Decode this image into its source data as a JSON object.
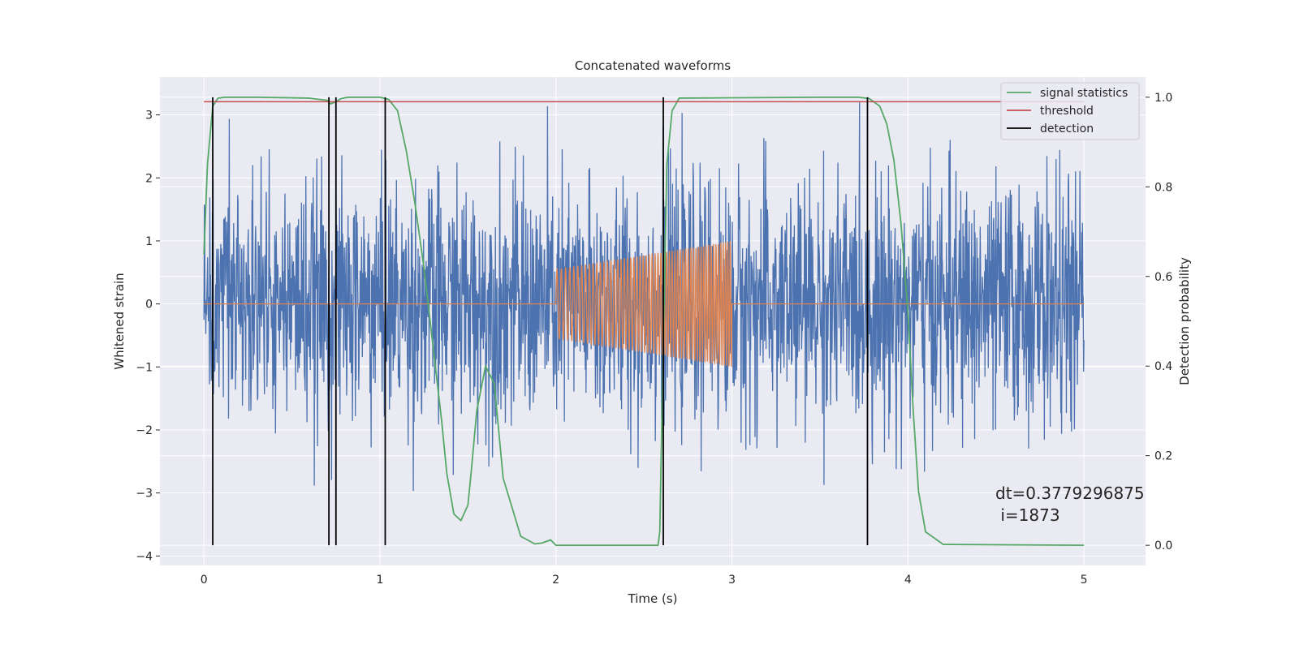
{
  "chart_data": {
    "type": "line",
    "title": "Concatenated waveforms",
    "xlabel": "Time (s)",
    "ylabel": "Whitened strain",
    "y2label": "Detection probability",
    "xlim": [
      -0.25,
      5.35
    ],
    "ylim": [
      -4.15,
      3.6
    ],
    "y2lim": [
      -0.045,
      1.045
    ],
    "xticks": [
      "0",
      "1",
      "2",
      "3",
      "4",
      "5"
    ],
    "xtick_values": [
      0,
      1,
      2,
      3,
      4,
      5
    ],
    "yticks": [
      "−4",
      "−3",
      "−2",
      "−1",
      "0",
      "1",
      "2",
      "3"
    ],
    "ytick_values": [
      -4,
      -3,
      -2,
      -1,
      0,
      1,
      2,
      3
    ],
    "y2ticks": [
      "0.0",
      "0.2",
      "0.4",
      "0.6",
      "0.8",
      "1.0"
    ],
    "y2tick_values": [
      0,
      0.2,
      0.4,
      0.6,
      0.8,
      1.0
    ],
    "grid": true,
    "legend_position": "top-right",
    "series": [
      {
        "name": "",
        "kind": "noise",
        "color": "#4c72b0",
        "x_range": [
          0,
          5
        ],
        "approx_std": 1.0,
        "approx_min": -3.9,
        "approx_max": 3.2
      },
      {
        "name": "",
        "kind": "chirp",
        "color": "#dd8452",
        "x_range": [
          2.0,
          3.0
        ],
        "amplitude_start": 0.55,
        "amplitude_end": 1.0,
        "baseline": 0
      },
      {
        "name": "signal statistics",
        "axis": "right",
        "color": "#55a868",
        "x": [
          0.0,
          0.02,
          0.05,
          0.08,
          0.12,
          0.3,
          0.6,
          0.7,
          0.72,
          0.75,
          0.78,
          0.82,
          1.0,
          1.05,
          1.1,
          1.15,
          1.2,
          1.25,
          1.3,
          1.35,
          1.38,
          1.42,
          1.46,
          1.5,
          1.52,
          1.55,
          1.6,
          1.65,
          1.7,
          1.8,
          1.88,
          1.92,
          1.97,
          2.0,
          2.3,
          2.55,
          2.58,
          2.59,
          2.61,
          2.63,
          2.66,
          2.7,
          3.5,
          3.72,
          3.78,
          3.84,
          3.88,
          3.92,
          3.96,
          4.0,
          4.03,
          4.06,
          4.1,
          4.2,
          5.0
        ],
        "values": [
          0.65,
          0.85,
          0.98,
          0.998,
          1.0,
          1.0,
          0.998,
          0.993,
          0.985,
          0.99,
          0.997,
          1.0,
          1.0,
          0.995,
          0.97,
          0.88,
          0.76,
          0.62,
          0.45,
          0.28,
          0.16,
          0.07,
          0.055,
          0.09,
          0.17,
          0.3,
          0.4,
          0.36,
          0.15,
          0.02,
          0.003,
          0.005,
          0.012,
          0.0,
          0.0,
          0.0,
          0.0,
          0.03,
          0.45,
          0.85,
          0.97,
          0.998,
          1.0,
          1.0,
          0.997,
          0.98,
          0.94,
          0.86,
          0.72,
          0.52,
          0.3,
          0.12,
          0.03,
          0.002,
          0.0
        ]
      },
      {
        "name": "threshold",
        "axis": "right",
        "color": "#c44e52",
        "x": [
          0,
          5
        ],
        "values": [
          0.99,
          0.99
        ]
      }
    ],
    "detections": {
      "name": "detection",
      "color": "#000000",
      "x": [
        0.05,
        0.71,
        0.75,
        1.03,
        2.61,
        3.77
      ]
    },
    "annotation": {
      "line1": "dt=0.3779296875",
      "line2": " i=1873"
    }
  },
  "colors": {
    "plot_background": "#eaeaf2",
    "grid": "#ffffff",
    "text": "#262626"
  }
}
